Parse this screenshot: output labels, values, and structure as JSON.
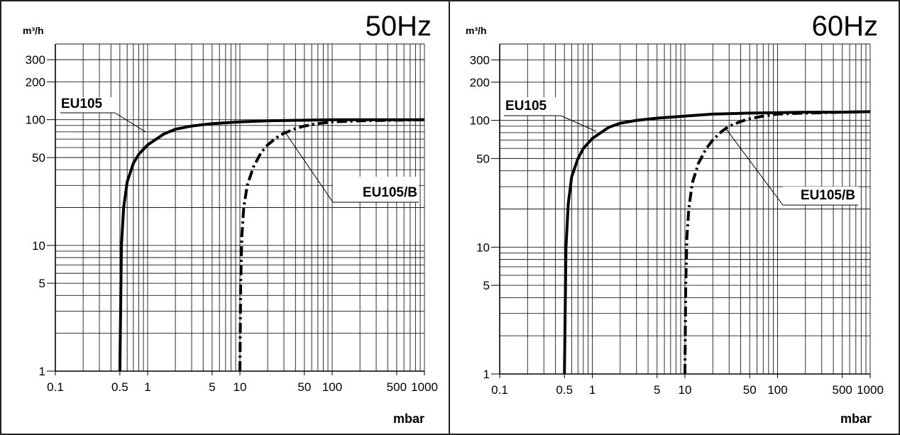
{
  "chart_data": [
    {
      "type": "line",
      "title": "50Hz",
      "ylabel": "m³/h",
      "xlabel": "mbar",
      "x_scale": "log",
      "y_scale": "log",
      "xlim": [
        0.1,
        1000
      ],
      "ylim": [
        1,
        400
      ],
      "x_ticks": [
        0.1,
        0.5,
        1,
        5,
        10,
        50,
        100,
        500,
        1000
      ],
      "x_tick_labels": [
        "0.1",
        "0.5",
        "1",
        "5",
        "10",
        "50",
        "100",
        "500",
        "1000"
      ],
      "y_ticks": [
        1,
        5,
        10,
        50,
        100,
        200,
        300
      ],
      "y_tick_labels": [
        "1",
        "5",
        "10",
        "50",
        "100",
        "200",
        "300"
      ],
      "grid": true,
      "series": [
        {
          "name": "EU105",
          "style": "solid",
          "x": [
            0.5,
            0.52,
            0.55,
            0.6,
            0.7,
            0.8,
            1,
            1.5,
            2,
            3,
            5,
            10,
            20,
            50,
            100,
            200,
            500,
            1000
          ],
          "y": [
            1,
            10,
            20,
            32,
            45,
            53,
            63,
            77,
            84,
            89,
            93,
            96,
            98,
            99,
            100,
            100,
            100,
            100
          ]
        },
        {
          "name": "EU105/B",
          "style": "dashdot",
          "x": [
            10,
            10.2,
            10.5,
            11,
            12,
            14,
            17,
            20,
            25,
            30,
            40,
            50,
            70,
            100,
            200,
            500,
            1000
          ],
          "y": [
            1,
            5,
            12,
            20,
            30,
            42,
            55,
            63,
            72,
            78,
            85,
            89,
            93,
            96,
            98,
            99,
            100
          ]
        }
      ],
      "annotations": [
        {
          "text": "EU105",
          "target_series": "EU105"
        },
        {
          "text": "EU105/B",
          "target_series": "EU105/B"
        }
      ]
    },
    {
      "type": "line",
      "title": "60Hz",
      "ylabel": "m³/h",
      "xlabel": "mbar",
      "x_scale": "log",
      "y_scale": "log",
      "xlim": [
        0.1,
        1000
      ],
      "ylim": [
        1,
        400
      ],
      "x_ticks": [
        0.1,
        0.5,
        1,
        5,
        10,
        50,
        100,
        500,
        1000
      ],
      "x_tick_labels": [
        "0.1",
        "0.5",
        "1",
        "5",
        "10",
        "50",
        "100",
        "500",
        "1000"
      ],
      "y_ticks": [
        1,
        5,
        10,
        50,
        100,
        200,
        300
      ],
      "y_tick_labels": [
        "1",
        "5",
        "10",
        "50",
        "100",
        "200",
        "300"
      ],
      "grid": true,
      "series": [
        {
          "name": "EU105",
          "style": "solid",
          "x": [
            0.5,
            0.52,
            0.55,
            0.6,
            0.7,
            0.8,
            1,
            1.5,
            2,
            3,
            5,
            10,
            20,
            50,
            100,
            200,
            500,
            1000
          ],
          "y": [
            1,
            10,
            22,
            36,
            50,
            60,
            72,
            88,
            95,
            100,
            104,
            108,
            112,
            114,
            115,
            116,
            116,
            117
          ]
        },
        {
          "name": "EU105/B",
          "style": "dashdot",
          "x": [
            10,
            10.2,
            10.5,
            11,
            12,
            14,
            17,
            20,
            25,
            30,
            40,
            50,
            70,
            100,
            200,
            500,
            1000
          ],
          "y": [
            1,
            5,
            12,
            20,
            32,
            46,
            60,
            70,
            82,
            90,
            98,
            103,
            108,
            112,
            114,
            116,
            117
          ]
        }
      ],
      "annotations": [
        {
          "text": "EU105",
          "target_series": "EU105"
        },
        {
          "text": "EU105/B",
          "target_series": "EU105/B"
        }
      ]
    }
  ]
}
